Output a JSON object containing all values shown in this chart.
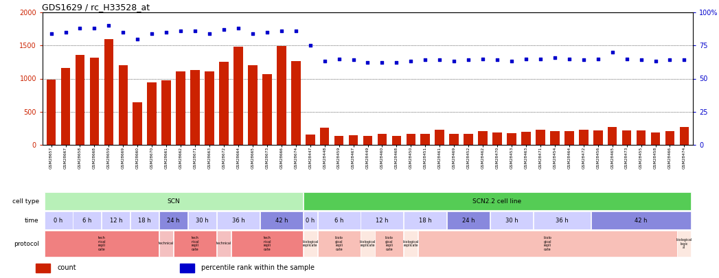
{
  "title": "GDS1629 / rc_H33528_at",
  "bar_color": "#cc2200",
  "dot_color": "#0000cc",
  "ylim_left": [
    0,
    2000
  ],
  "ylim_right": [
    0,
    100
  ],
  "yticks_left": [
    0,
    500,
    1000,
    1500,
    2000
  ],
  "yticks_right": [
    0,
    25,
    50,
    75,
    100
  ],
  "ytick_labels_right": [
    "0",
    "25",
    "50",
    "75",
    "100%"
  ],
  "gsm_labels": [
    "GSM28657",
    "GSM28667",
    "GSM28658",
    "GSM28668",
    "GSM28659",
    "GSM28669",
    "GSM28660",
    "GSM28670",
    "GSM28661",
    "GSM28662",
    "GSM28671",
    "GSM28663",
    "GSM28672",
    "GSM28664",
    "GSM28665",
    "GSM28673",
    "GSM28666",
    "GSM28674",
    "GSM28447",
    "GSM28448",
    "GSM28459",
    "GSM28467",
    "GSM28449",
    "GSM28460",
    "GSM28468",
    "GSM28450",
    "GSM28451",
    "GSM28461",
    "GSM28469",
    "GSM28452",
    "GSM28462",
    "GSM28470",
    "GSM28453",
    "GSM28463",
    "GSM28471",
    "GSM28454",
    "GSM28464",
    "GSM28472",
    "GSM28456",
    "GSM28465",
    "GSM28473",
    "GSM28455",
    "GSM28458",
    "GSM28466",
    "GSM28474"
  ],
  "counts": [
    980,
    1160,
    1360,
    1320,
    1600,
    1200,
    640,
    940,
    970,
    1110,
    1130,
    1110,
    1250,
    1480,
    1200,
    1070,
    1490,
    1260,
    160,
    260,
    130,
    150,
    130,
    170,
    130,
    170,
    170,
    230,
    165,
    170,
    210,
    190,
    180,
    200,
    230,
    210,
    210,
    230,
    220,
    270,
    220,
    215,
    190,
    210,
    270
  ],
  "percentiles": [
    84,
    85,
    88,
    88,
    90,
    85,
    80,
    84,
    85,
    86,
    86,
    84,
    87,
    88,
    84,
    85,
    86,
    86,
    75,
    63,
    65,
    64,
    62,
    62,
    62,
    63,
    64,
    64,
    63,
    64,
    65,
    64,
    63,
    65,
    65,
    66,
    65,
    64,
    65,
    70,
    65,
    64,
    63,
    64,
    64
  ],
  "cell_type_groups": [
    {
      "label": "SCN",
      "start": 0,
      "end": 18,
      "color": "#b8f0b8"
    },
    {
      "label": "SCN2.2 cell line",
      "start": 18,
      "end": 45,
      "color": "#55cc55"
    }
  ],
  "time_groups": [
    {
      "label": "0 h",
      "start": 0,
      "end": 2,
      "color": "#d0d0ff"
    },
    {
      "label": "6 h",
      "start": 2,
      "end": 4,
      "color": "#d0d0ff"
    },
    {
      "label": "12 h",
      "start": 4,
      "end": 6,
      "color": "#d0d0ff"
    },
    {
      "label": "18 h",
      "start": 6,
      "end": 8,
      "color": "#d0d0ff"
    },
    {
      "label": "24 h",
      "start": 8,
      "end": 10,
      "color": "#8888dd"
    },
    {
      "label": "30 h",
      "start": 10,
      "end": 12,
      "color": "#d0d0ff"
    },
    {
      "label": "36 h",
      "start": 12,
      "end": 15,
      "color": "#d0d0ff"
    },
    {
      "label": "42 h",
      "start": 15,
      "end": 18,
      "color": "#8888dd"
    },
    {
      "label": "0 h",
      "start": 18,
      "end": 19,
      "color": "#d0d0ff"
    },
    {
      "label": "6 h",
      "start": 19,
      "end": 22,
      "color": "#d0d0ff"
    },
    {
      "label": "12 h",
      "start": 22,
      "end": 25,
      "color": "#d0d0ff"
    },
    {
      "label": "18 h",
      "start": 25,
      "end": 28,
      "color": "#d0d0ff"
    },
    {
      "label": "24 h",
      "start": 28,
      "end": 31,
      "color": "#8888dd"
    },
    {
      "label": "30 h",
      "start": 31,
      "end": 34,
      "color": "#d0d0ff"
    },
    {
      "label": "36 h",
      "start": 34,
      "end": 38,
      "color": "#d0d0ff"
    },
    {
      "label": "42 h",
      "start": 38,
      "end": 45,
      "color": "#8888dd"
    }
  ],
  "protocol_colors_scn": "#f08080",
  "protocol_colors_scn_single": "#f4c0c0",
  "protocol_colors_bio": "#fce8e0",
  "protocol_colors_bio_multi": "#f8c0b8",
  "legend_label_count": "count",
  "legend_label_pct": "percentile rank within the sample",
  "row_label_celltype": "cell type",
  "row_label_time": "time",
  "row_label_protocol": "protocol"
}
